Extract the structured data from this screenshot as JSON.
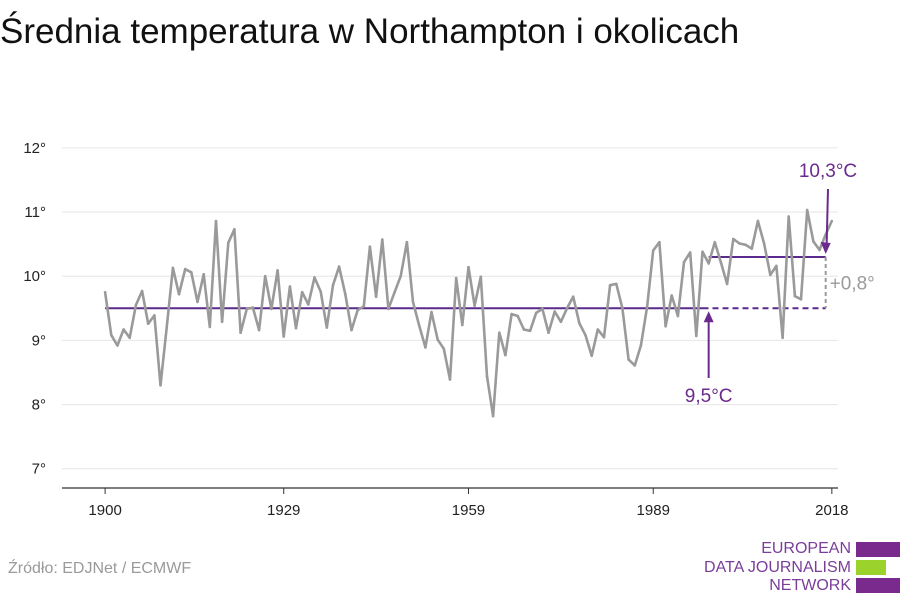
{
  "title": "Średnia temperatura w Northampton i okolicach",
  "source": "Źródło: EDJNet / ECMWF",
  "logo": {
    "lines": [
      "EUROPEAN",
      "DATA JOURNALISM",
      "NETWORK"
    ],
    "colors": [
      "#7a2a8c",
      "#9bd22c",
      "#7a2a8c"
    ]
  },
  "colors": {
    "series": "#9a9a9a",
    "baseline": "#5a2a8c",
    "annotation": "#6b2b8c",
    "difference": "#9a9a9a"
  },
  "chart_data": {
    "type": "line",
    "title": "Średnia temperatura w Northampton i okolicach",
    "xlabel": "",
    "ylabel": "",
    "x_ticks": [
      1900,
      1929,
      1959,
      1989,
      2018
    ],
    "y_ticks": [
      7,
      8,
      9,
      10,
      11,
      12
    ],
    "y_tick_labels": [
      "7°",
      "8°",
      "9°",
      "10°",
      "11°",
      "12°"
    ],
    "xlim": [
      1893,
      2019
    ],
    "ylim": [
      6.7,
      12.2
    ],
    "grid": true,
    "x": [
      1900,
      1901,
      1902,
      1903,
      1904,
      1905,
      1906,
      1907,
      1908,
      1909,
      1910,
      1911,
      1912,
      1913,
      1914,
      1915,
      1916,
      1917,
      1918,
      1919,
      1920,
      1921,
      1922,
      1923,
      1924,
      1925,
      1926,
      1927,
      1928,
      1929,
      1930,
      1931,
      1932,
      1933,
      1934,
      1935,
      1936,
      1937,
      1938,
      1939,
      1940,
      1941,
      1942,
      1943,
      1944,
      1945,
      1946,
      1947,
      1948,
      1949,
      1950,
      1951,
      1952,
      1953,
      1954,
      1955,
      1956,
      1957,
      1958,
      1959,
      1960,
      1961,
      1962,
      1963,
      1964,
      1965,
      1966,
      1967,
      1968,
      1969,
      1970,
      1971,
      1972,
      1973,
      1974,
      1975,
      1976,
      1977,
      1978,
      1979,
      1980,
      1981,
      1982,
      1983,
      1984,
      1985,
      1986,
      1987,
      1988,
      1989,
      1990,
      1991,
      1992,
      1993,
      1994,
      1995,
      1996,
      1997,
      1998,
      1999,
      2000,
      2001,
      2002,
      2003,
      2004,
      2005,
      2006,
      2007,
      2008,
      2009,
      2010,
      2011,
      2012,
      2013,
      2014,
      2015,
      2016,
      2017,
      2018
    ],
    "series": [
      {
        "values": [
          9.75,
          9.08,
          8.92,
          9.17,
          9.04,
          9.55,
          9.77,
          9.26,
          9.39,
          8.3,
          9.2,
          10.13,
          9.72,
          10.11,
          10.06,
          9.6,
          10.03,
          9.21,
          10.86,
          9.29,
          10.52,
          10.73,
          9.12,
          9.49,
          9.51,
          9.16,
          10.0,
          9.49,
          10.09,
          9.06,
          9.84,
          9.19,
          9.75,
          9.56,
          9.98,
          9.76,
          9.2,
          9.86,
          10.15,
          9.72,
          9.16,
          9.47,
          9.53,
          10.46,
          9.68,
          10.57,
          9.49,
          9.75,
          10.0,
          10.53,
          9.6,
          9.23,
          8.89,
          9.44,
          9.01,
          8.87,
          8.39,
          9.97,
          9.24,
          10.14,
          9.54,
          9.99,
          8.44,
          7.82,
          9.12,
          8.77,
          9.41,
          9.38,
          9.17,
          9.15,
          9.43,
          9.49,
          9.12,
          9.45,
          9.29,
          9.5,
          9.68,
          9.27,
          9.08,
          8.76,
          9.17,
          9.05,
          9.86,
          9.88,
          9.5,
          8.7,
          8.61,
          8.92,
          9.52,
          10.4,
          10.53,
          9.22,
          9.7,
          9.38,
          10.22,
          10.37,
          9.07,
          10.38,
          10.2,
          10.53,
          10.21,
          9.88,
          10.58,
          10.51,
          10.49,
          10.43,
          10.86,
          10.51,
          10.02,
          10.16,
          9.04,
          10.93,
          9.69,
          9.64,
          11.03,
          10.54,
          10.41,
          10.65,
          10.86
        ]
      }
    ],
    "baseline": {
      "value": 9.5,
      "x_start": 1900,
      "x_solid_end": 1997,
      "x_end": 2017
    },
    "recent": {
      "value": 10.3,
      "x_start": 1998,
      "x_end": 2017
    },
    "annotations": {
      "baseline_label": "9,5°C",
      "recent_label": "10,3°C",
      "difference_label": "+0,8°"
    }
  }
}
